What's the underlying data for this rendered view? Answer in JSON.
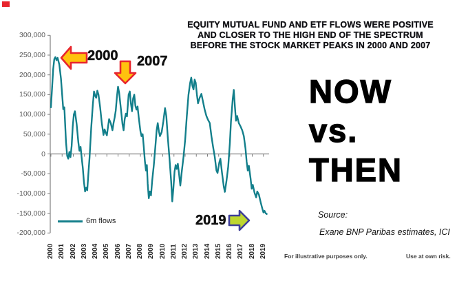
{
  "page": {
    "background": "#ffffff"
  },
  "decor": {
    "corner_mark_color": "#e8252d"
  },
  "title": {
    "text": "EQUITY MUTUAL FUND AND ETF FLOWS WERE POSITIVE\nAND CLOSER TO THE HIGH END OF THE SPECTRUM\nBEFORE THE STOCK MARKET PEAKS IN 2000 AND 2007",
    "color": "#101014"
  },
  "headline": {
    "lines": [
      "NOW",
      "vs.",
      "THEN"
    ],
    "color": "#000000"
  },
  "annotations": {
    "items": [
      {
        "label": "2000",
        "arrow": "left-arrow",
        "fill": "#ffc20e",
        "stroke": "#e8252d"
      },
      {
        "label": "2007",
        "arrow": "down-arrow",
        "fill": "#ffc20e",
        "stroke": "#e8252d"
      },
      {
        "label": "2019",
        "arrow": "right-arrow",
        "fill": "#bed62f",
        "stroke": "#3e3e99"
      }
    ],
    "text_color": "#111111"
  },
  "legend": {
    "label": "6m flows",
    "color": "#222222"
  },
  "source": {
    "label": "Source:",
    "text": "Exane BNP Paribas estimates, ICI",
    "color": "#141414"
  },
  "footer": {
    "left": "For illustrative purposes only.",
    "right": "Use at own risk.",
    "color": "#3f3f3f"
  },
  "chart_data": {
    "type": "line",
    "series_name": "6m flows",
    "line_color": "#137f8b",
    "axis_color": "#808080",
    "y_label_color": "#595959",
    "x_label_color": "#262626",
    "grid": false,
    "legend_position": "bottom-left",
    "ylim": [
      -200000,
      300000
    ],
    "y_ticks": [
      {
        "v": 300000,
        "label": "300,000"
      },
      {
        "v": 250000,
        "label": "250,000"
      },
      {
        "v": 200000,
        "label": "200,000"
      },
      {
        "v": 150000,
        "label": "150,000"
      },
      {
        "v": 100000,
        "label": "100,000"
      },
      {
        "v": 50000,
        "label": "50,000"
      },
      {
        "v": 0,
        "label": "0"
      },
      {
        "v": -50000,
        "label": "-50,000"
      },
      {
        "v": -100000,
        "label": "-100,000"
      },
      {
        "v": -150000,
        "label": "-150,000"
      },
      {
        "v": -200000,
        "label": "-200,000"
      }
    ],
    "x_tick_labels": [
      "2000",
      "2001",
      "2002",
      "2003",
      "2004",
      "2005",
      "2006",
      "2007",
      "2008",
      "2009",
      "2010",
      "2011",
      "2012",
      "2013",
      "2014",
      "2015",
      "2016",
      "2017",
      "2018",
      "2019"
    ],
    "x": [
      2000.0,
      2000.1,
      2000.2,
      2000.3,
      2000.4,
      2000.5,
      2000.6,
      2000.75,
      2000.9,
      2001.0,
      2001.1,
      2001.2,
      2001.35,
      2001.45,
      2001.55,
      2001.65,
      2001.75,
      2001.85,
      2001.95,
      2002.05,
      2002.15,
      2002.3,
      2002.45,
      2002.55,
      2002.65,
      2002.75,
      2002.85,
      2002.95,
      2003.05,
      2003.15,
      2003.25,
      2003.35,
      2003.45,
      2003.6,
      2003.75,
      2003.85,
      2003.95,
      2004.05,
      2004.15,
      2004.25,
      2004.4,
      2004.55,
      2004.7,
      2004.8,
      2004.9,
      2005.0,
      2005.1,
      2005.2,
      2005.35,
      2005.5,
      2005.6,
      2005.7,
      2005.8,
      2005.9,
      2006.0,
      2006.1,
      2006.25,
      2006.4,
      2006.5,
      2006.6,
      2006.7,
      2006.8,
      2006.95,
      2007.05,
      2007.15,
      2007.25,
      2007.35,
      2007.45,
      2007.55,
      2007.65,
      2007.75,
      2007.85,
      2008.0,
      2008.1,
      2008.2,
      2008.3,
      2008.4,
      2008.5,
      2008.58,
      2008.65,
      2008.75,
      2008.85,
      2008.95,
      2009.05,
      2009.2,
      2009.35,
      2009.45,
      2009.55,
      2009.65,
      2009.75,
      2009.9,
      2010.05,
      2010.2,
      2010.32,
      2010.45,
      2010.6,
      2010.75,
      2010.85,
      2010.95,
      2011.05,
      2011.15,
      2011.25,
      2011.35,
      2011.45,
      2011.57,
      2011.7,
      2011.85,
      2012.0,
      2012.15,
      2012.3,
      2012.45,
      2012.55,
      2012.65,
      2012.75,
      2012.85,
      2012.95,
      2013.05,
      2013.15,
      2013.3,
      2013.45,
      2013.6,
      2013.75,
      2013.9,
      2014.05,
      2014.2,
      2014.35,
      2014.5,
      2014.65,
      2014.8,
      2014.9,
      2015.05,
      2015.15,
      2015.3,
      2015.45,
      2015.55,
      2015.7,
      2015.85,
      2016.0,
      2016.1,
      2016.25,
      2016.35,
      2016.45,
      2016.55,
      2016.65,
      2016.8,
      2016.95,
      2017.1,
      2017.25,
      2017.4,
      2017.5,
      2017.6,
      2017.7,
      2017.85,
      2017.95,
      2018.05,
      2018.2,
      2018.35,
      2018.45,
      2018.6,
      2018.75,
      2018.9,
      2019.0,
      2019.1,
      2019.2,
      2019.3
    ],
    "y": [
      118000,
      165000,
      215000,
      240000,
      245000,
      237000,
      243000,
      226000,
      190000,
      150000,
      113000,
      118000,
      30000,
      -5000,
      -12000,
      5000,
      -8000,
      20000,
      70000,
      100000,
      108000,
      75000,
      30000,
      8000,
      18000,
      -10000,
      -35000,
      -70000,
      -95000,
      -85000,
      -92000,
      -50000,
      -10000,
      65000,
      125000,
      158000,
      147000,
      142000,
      160000,
      150000,
      118000,
      78000,
      48000,
      62000,
      54000,
      47000,
      68000,
      88000,
      78000,
      60000,
      78000,
      92000,
      110000,
      145000,
      170000,
      155000,
      115000,
      75000,
      60000,
      88000,
      102000,
      95000,
      150000,
      158000,
      128000,
      108000,
      140000,
      150000,
      122000,
      112000,
      120000,
      92000,
      58000,
      45000,
      50000,
      18000,
      -18000,
      -42000,
      -28000,
      -75000,
      -112000,
      -95000,
      -105000,
      -68000,
      -28000,
      22000,
      60000,
      78000,
      58000,
      45000,
      55000,
      82000,
      116000,
      95000,
      42000,
      -10000,
      -70000,
      -120000,
      -88000,
      -45000,
      -28000,
      -38000,
      -25000,
      -50000,
      -80000,
      -45000,
      -8000,
      35000,
      95000,
      150000,
      180000,
      193000,
      172000,
      163000,
      188000,
      180000,
      150000,
      128000,
      142000,
      152000,
      132000,
      112000,
      96000,
      86000,
      78000,
      45000,
      18000,
      -8000,
      -42000,
      -48000,
      -22000,
      -12000,
      -48000,
      -82000,
      -96000,
      -68000,
      -32000,
      28000,
      82000,
      138000,
      162000,
      120000,
      84000,
      96000,
      78000,
      70000,
      60000,
      45000,
      12000,
      -20000,
      -42000,
      -30000,
      -62000,
      -88000,
      -78000,
      -98000,
      -110000,
      -95000,
      -103000,
      -122000,
      -138000,
      -148000,
      -144000,
      -150000,
      -152000
    ]
  }
}
